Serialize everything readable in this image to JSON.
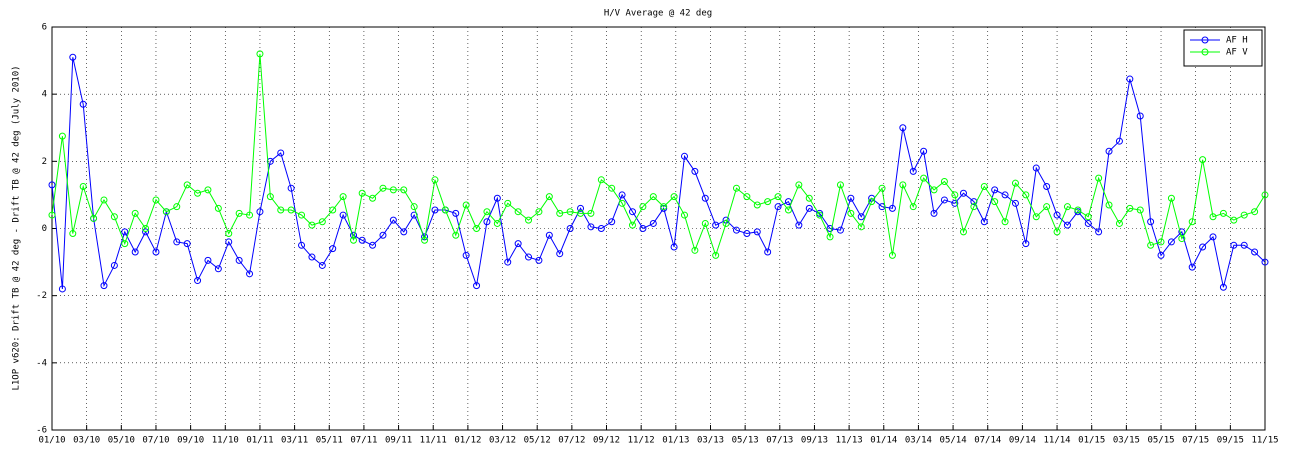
{
  "chart_data": {
    "type": "line",
    "title": "H/V Average @ 42 deg",
    "y_label": "L1OP v620: Drift TB @ 42 deg - Drift TB @ 42 deg (July 2010)",
    "x": [
      0.0,
      0.6,
      1.2,
      1.8,
      2.4,
      3.0,
      3.6,
      4.2,
      4.8,
      5.4,
      6.0,
      6.6,
      7.2,
      7.8,
      8.4,
      9.0,
      9.6,
      10.2,
      10.8,
      11.4,
      12.0,
      12.6,
      13.2,
      13.8,
      14.4,
      15.0,
      15.6,
      16.2,
      16.8,
      17.4,
      17.9,
      18.5,
      19.1,
      19.7,
      20.3,
      20.9,
      21.5,
      22.1,
      22.7,
      23.3,
      23.9,
      24.5,
      25.1,
      25.7,
      26.3,
      26.9,
      27.5,
      28.1,
      28.7,
      29.3,
      29.9,
      30.5,
      31.1,
      31.7,
      32.3,
      32.9,
      33.5,
      34.1,
      34.7,
      35.3,
      35.9,
      36.5,
      37.1,
      37.7,
      38.3,
      38.9,
      39.5,
      40.1,
      40.7,
      41.3,
      41.9,
      42.5,
      43.1,
      43.7,
      44.3,
      44.9,
      45.5,
      46.1,
      46.7,
      47.3,
      47.9,
      48.5,
      49.1,
      49.7,
      50.3,
      50.9,
      51.5,
      52.1,
      52.6,
      53.2,
      53.8,
      54.4,
      55.0,
      55.6,
      56.2,
      56.8,
      57.4,
      58.0,
      58.6,
      59.2,
      59.8,
      60.4,
      61.0,
      61.6,
      62.2,
      62.8,
      63.4,
      64.0,
      64.6,
      65.2,
      65.8,
      66.4,
      67.0,
      67.6,
      68.2,
      68.8,
      69.4,
      70.0
    ],
    "series": [
      {
        "name": "AF H",
        "color": "#0000ff",
        "values": [
          1.3,
          -1.8,
          5.1,
          3.7,
          0.3,
          -1.7,
          -1.1,
          -0.1,
          -0.7,
          -0.1,
          -0.7,
          0.5,
          -0.4,
          -0.45,
          -1.55,
          -0.95,
          -1.2,
          -0.4,
          -0.95,
          -1.35,
          0.5,
          2.0,
          2.25,
          1.2,
          -0.5,
          -0.85,
          -1.1,
          -0.6,
          0.4,
          -0.2,
          -0.35,
          -0.5,
          -0.2,
          0.25,
          -0.1,
          0.4,
          -0.25,
          0.55,
          0.55,
          0.45,
          -0.8,
          -1.7,
          0.2,
          0.9,
          -1.0,
          -0.45,
          -0.85,
          -0.95,
          -0.2,
          -0.75,
          0.0,
          0.6,
          0.05,
          0.0,
          0.2,
          1.0,
          0.5,
          0.0,
          0.15,
          0.6,
          -0.55,
          2.15,
          1.7,
          0.9,
          0.1,
          0.25,
          -0.05,
          -0.15,
          -0.1,
          -0.7,
          0.65,
          0.8,
          0.1,
          0.6,
          0.45,
          0.0,
          -0.05,
          0.9,
          0.35,
          0.9,
          0.65,
          0.6,
          3.0,
          1.7,
          2.3,
          0.45,
          0.85,
          0.75,
          1.05,
          0.8,
          0.2,
          1.15,
          1.0,
          0.75,
          -0.45,
          1.8,
          1.25,
          0.4,
          0.1,
          0.5,
          0.15,
          -0.1,
          2.3,
          2.6,
          4.45,
          3.35,
          0.2,
          -0.8,
          -0.4,
          -0.1,
          -1.15,
          -0.55,
          -0.25,
          -1.75,
          -0.5,
          -0.5,
          -0.7,
          -1.0
        ]
      },
      {
        "name": "AF V",
        "color": "#00ff00",
        "values": [
          0.4,
          2.75,
          -0.15,
          1.25,
          0.3,
          0.85,
          0.35,
          -0.45,
          0.45,
          0.0,
          0.85,
          0.5,
          0.65,
          1.3,
          1.05,
          1.15,
          0.6,
          -0.15,
          0.45,
          0.4,
          5.2,
          0.95,
          0.55,
          0.55,
          0.4,
          0.1,
          0.2,
          0.55,
          0.95,
          -0.35,
          1.05,
          0.9,
          1.2,
          1.15,
          1.15,
          0.65,
          -0.35,
          1.45,
          0.55,
          -0.2,
          0.7,
          0.0,
          0.5,
          0.15,
          0.75,
          0.5,
          0.25,
          0.5,
          0.95,
          0.45,
          0.5,
          0.45,
          0.45,
          1.45,
          1.2,
          0.75,
          0.1,
          0.65,
          0.95,
          0.65,
          0.95,
          0.4,
          -0.65,
          0.15,
          -0.8,
          0.15,
          1.2,
          0.95,
          0.7,
          0.8,
          0.95,
          0.55,
          1.3,
          0.9,
          0.4,
          -0.25,
          1.3,
          0.45,
          0.05,
          0.8,
          1.2,
          -0.8,
          1.3,
          0.65,
          1.5,
          1.15,
          1.4,
          1.0,
          -0.1,
          0.65,
          1.25,
          0.8,
          0.2,
          1.35,
          1.0,
          0.35,
          0.65,
          -0.1,
          0.65,
          0.55,
          0.35,
          1.5,
          0.7,
          0.15,
          0.6,
          0.55,
          -0.5,
          -0.4,
          0.9,
          -0.3,
          0.2,
          2.05,
          0.35,
          0.45,
          0.25,
          0.4,
          0.5,
          1.0
        ]
      }
    ],
    "xlim": [
      0,
      70
    ],
    "xticks": [
      {
        "value": 0,
        "label": "01/10"
      },
      {
        "value": 2,
        "label": "03/10"
      },
      {
        "value": 4,
        "label": "05/10"
      },
      {
        "value": 6,
        "label": "07/10"
      },
      {
        "value": 8,
        "label": "09/10"
      },
      {
        "value": 10,
        "label": "11/10"
      },
      {
        "value": 12,
        "label": "01/11"
      },
      {
        "value": 14,
        "label": "03/11"
      },
      {
        "value": 16,
        "label": "05/11"
      },
      {
        "value": 18,
        "label": "07/11"
      },
      {
        "value": 20,
        "label": "09/11"
      },
      {
        "value": 22,
        "label": "11/11"
      },
      {
        "value": 24,
        "label": "01/12"
      },
      {
        "value": 26,
        "label": "03/12"
      },
      {
        "value": 28,
        "label": "05/12"
      },
      {
        "value": 30,
        "label": "07/12"
      },
      {
        "value": 32,
        "label": "09/12"
      },
      {
        "value": 34,
        "label": "11/12"
      },
      {
        "value": 36,
        "label": "01/13"
      },
      {
        "value": 38,
        "label": "03/13"
      },
      {
        "value": 40,
        "label": "05/13"
      },
      {
        "value": 42,
        "label": "07/13"
      },
      {
        "value": 44,
        "label": "09/13"
      },
      {
        "value": 46,
        "label": "11/13"
      },
      {
        "value": 48,
        "label": "01/14"
      },
      {
        "value": 50,
        "label": "03/14"
      },
      {
        "value": 52,
        "label": "05/14"
      },
      {
        "value": 54,
        "label": "07/14"
      },
      {
        "value": 56,
        "label": "09/14"
      },
      {
        "value": 58,
        "label": "11/14"
      },
      {
        "value": 60,
        "label": "01/15"
      },
      {
        "value": 62,
        "label": "03/15"
      },
      {
        "value": 64,
        "label": "05/15"
      },
      {
        "value": 66,
        "label": "07/15"
      },
      {
        "value": 68,
        "label": "09/15"
      },
      {
        "value": 70,
        "label": "11/15"
      }
    ],
    "ylim": [
      -6,
      6
    ],
    "yticks": [
      -6,
      -4,
      -2,
      0,
      2,
      4,
      6
    ],
    "grid": true,
    "legend": "upper right",
    "marker": "circle"
  }
}
